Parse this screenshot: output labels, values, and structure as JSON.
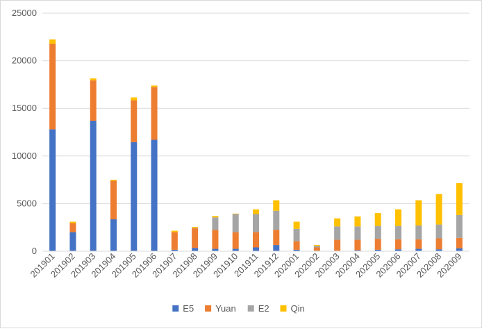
{
  "chart_data": {
    "type": "bar",
    "stacked": true,
    "categories": [
      "201901",
      "201902",
      "201903",
      "201904",
      "201905",
      "201906",
      "201907",
      "201908",
      "201909",
      "201910",
      "201911",
      "201912",
      "202001",
      "202002",
      "202003",
      "202004",
      "202005",
      "202006",
      "202007",
      "202008",
      "202009"
    ],
    "series": [
      {
        "name": "E5",
        "color": "#4472C4",
        "values": [
          12800,
          2000,
          13700,
          3350,
          11450,
          11700,
          150,
          350,
          250,
          250,
          400,
          650,
          150,
          50,
          50,
          100,
          150,
          200,
          250,
          200,
          300
        ]
      },
      {
        "name": "Yuan",
        "color": "#ED7D31",
        "values": [
          9000,
          950,
          4250,
          4050,
          4400,
          5550,
          1850,
          2050,
          2000,
          1750,
          1600,
          1600,
          900,
          350,
          1150,
          1100,
          1150,
          1050,
          1000,
          1150,
          1100
        ]
      },
      {
        "name": "E2",
        "color": "#A5A5A5",
        "values": [
          0,
          0,
          0,
          0,
          0,
          0,
          0,
          50,
          1300,
          1900,
          1900,
          2000,
          1300,
          150,
          1400,
          1400,
          1350,
          1400,
          1450,
          1450,
          2400
        ]
      },
      {
        "name": "Qin",
        "color": "#FFC000",
        "values": [
          450,
          150,
          200,
          100,
          300,
          150,
          150,
          100,
          150,
          50,
          500,
          1100,
          750,
          100,
          850,
          1050,
          1350,
          1750,
          2650,
          3200,
          3350
        ]
      }
    ],
    "ylim": [
      0,
      25000
    ],
    "yticks": [
      "0",
      "5000",
      "10000",
      "15000",
      "20000",
      "25000"
    ],
    "grid": true,
    "legend": "bottom"
  }
}
